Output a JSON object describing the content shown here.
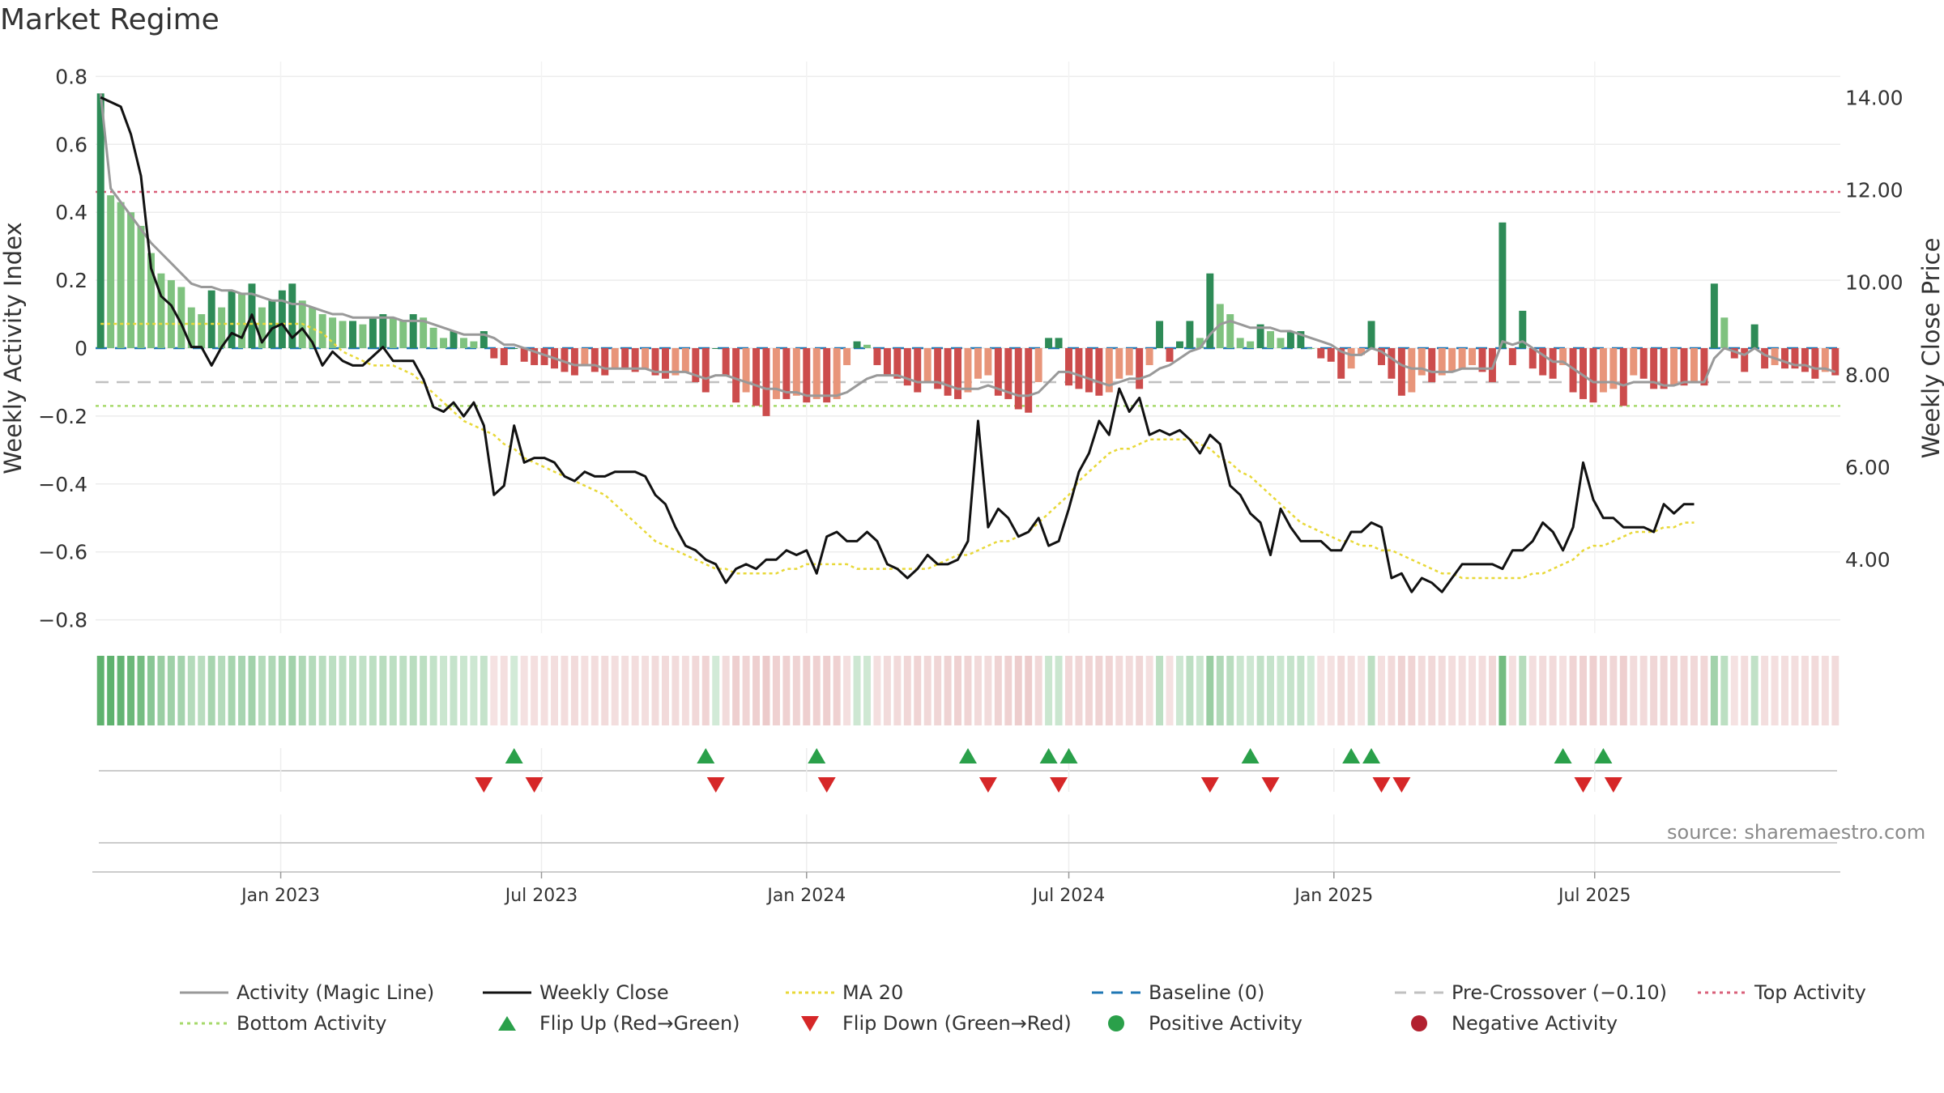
{
  "title": "Market Regime",
  "source_note": "source: sharemaestro.com",
  "colors": {
    "strong_green": "#2e8b57",
    "light_green": "#7fc27f",
    "strong_red": "#cc4c4c",
    "light_red": "#e8957a",
    "magic_line": "#999999",
    "weekly_close": "#111111",
    "ma20": "#e8d838",
    "baseline": "#1f77b4",
    "pre_crossover": "#c0c0c0",
    "top_activity": "#d9607a",
    "bottom_activity": "#a6d96a",
    "flip_up": "#2aa04a",
    "flip_down": "#d62728",
    "ribbon_green": "#5fb26e",
    "ribbon_red": "#e0a7a7"
  },
  "legend": [
    {
      "label": "Activity (Magic Line)",
      "icon": "solid-gray-line"
    },
    {
      "label": "Weekly Close",
      "icon": "solid-black-line"
    },
    {
      "label": "MA 20",
      "icon": "dotted-yellow-line"
    },
    {
      "label": "Baseline (0)",
      "icon": "dashed-blue-line"
    },
    {
      "label": "Pre-Crossover (−0.10)",
      "icon": "dashed-gray-line"
    },
    {
      "label": "Top Activity",
      "icon": "dotted-pink-line"
    },
    {
      "label": "Bottom Activity",
      "icon": "dotted-green-line"
    },
    {
      "label": "Flip Up (Red→Green)",
      "icon": "green-up-triangle"
    },
    {
      "label": "Flip Down (Green→Red)",
      "icon": "red-down-triangle"
    },
    {
      "label": "Positive Activity",
      "icon": "green-circle"
    },
    {
      "label": "Negative Activity",
      "icon": "red-circle"
    }
  ],
  "chart_data": {
    "type": "bar",
    "start_date": "2022-08-29",
    "frequency": "weekly",
    "y_left": {
      "label": "Weekly Activity Index",
      "lim": [
        -0.82,
        0.82
      ],
      "ticks": [
        0.8,
        0.6,
        0.4,
        0.2,
        0,
        -0.2,
        -0.4,
        -0.6,
        -0.8
      ],
      "tick_labels": [
        "0.8",
        "0.6",
        "0.4",
        "0.2",
        "0",
        "−0.2",
        "−0.4",
        "−0.6",
        "−0.8"
      ]
    },
    "y_right": {
      "label": "Weekly Close Price",
      "lim": [
        2.55,
        14.6
      ],
      "ticks": [
        14,
        12,
        10,
        8,
        6,
        4
      ],
      "tick_labels": [
        "14.00",
        "12.00",
        "10.00",
        "8.00",
        "6.00",
        "4.00"
      ]
    },
    "x_ticks": [
      {
        "label": "Jan 2023",
        "date": "2023-01-01"
      },
      {
        "label": "Jul 2023",
        "date": "2023-07-01"
      },
      {
        "label": "Jan 2024",
        "date": "2024-01-01"
      },
      {
        "label": "Jul 2024",
        "date": "2024-07-01"
      },
      {
        "label": "Jan 2025",
        "date": "2025-01-01"
      },
      {
        "label": "Jul 2025",
        "date": "2025-07-01"
      }
    ],
    "reference_lines": {
      "baseline": 0,
      "pre_crossover": -0.1,
      "top_activity": 0.46,
      "bottom_activity": -0.17
    },
    "activity": [
      0.75,
      0.45,
      0.43,
      0.4,
      0.36,
      0.28,
      0.22,
      0.2,
      0.18,
      0.12,
      0.1,
      0.17,
      0.12,
      0.17,
      0.16,
      0.19,
      0.12,
      0.14,
      0.17,
      0.19,
      0.14,
      0.12,
      0.1,
      0.09,
      0.08,
      0.08,
      0.07,
      0.09,
      0.1,
      0.09,
      0.08,
      0.1,
      0.09,
      0.06,
      0.03,
      0.05,
      0.03,
      0.02,
      0.05,
      -0.03,
      -0.05,
      0.0,
      -0.04,
      -0.05,
      -0.05,
      -0.06,
      -0.07,
      -0.08,
      -0.05,
      -0.07,
      -0.08,
      -0.06,
      -0.06,
      -0.07,
      -0.06,
      -0.08,
      -0.09,
      -0.08,
      -0.07,
      -0.1,
      -0.13,
      0.0,
      -0.08,
      -0.16,
      -0.13,
      -0.17,
      -0.2,
      -0.15,
      -0.15,
      -0.14,
      -0.16,
      -0.15,
      -0.16,
      -0.15,
      -0.05,
      0.02,
      0.01,
      -0.05,
      -0.08,
      -0.09,
      -0.11,
      -0.13,
      -0.1,
      -0.12,
      -0.14,
      -0.15,
      -0.13,
      -0.09,
      -0.08,
      -0.14,
      -0.15,
      -0.18,
      -0.19,
      -0.1,
      0.03,
      0.03,
      -0.11,
      -0.12,
      -0.13,
      -0.14,
      -0.13,
      -0.09,
      -0.08,
      -0.12,
      -0.05,
      0.08,
      -0.04,
      0.02,
      0.08,
      0.03,
      0.22,
      0.13,
      0.1,
      0.03,
      0.02,
      0.07,
      0.05,
      0.03,
      0.05,
      0.05,
      0.0,
      -0.03,
      -0.04,
      -0.09,
      -0.06,
      -0.02,
      0.08,
      -0.05,
      -0.09,
      -0.14,
      -0.13,
      -0.08,
      -0.1,
      -0.08,
      -0.07,
      -0.06,
      -0.05,
      -0.07,
      -0.1,
      0.37,
      -0.05,
      0.11,
      -0.06,
      -0.08,
      -0.09,
      -0.05,
      -0.13,
      -0.15,
      -0.16,
      -0.13,
      -0.12,
      -0.17,
      -0.08,
      -0.09,
      -0.12,
      -0.12,
      -0.11,
      -0.11,
      -0.1,
      -0.11,
      0.19,
      0.09,
      -0.03,
      -0.07,
      0.07,
      -0.06,
      -0.05,
      -0.06,
      -0.06,
      -0.07,
      -0.09,
      -0.07,
      -0.08
    ],
    "magic_line": [
      0.75,
      0.47,
      0.43,
      0.39,
      0.35,
      0.31,
      0.28,
      0.25,
      0.22,
      0.19,
      0.18,
      0.18,
      0.17,
      0.17,
      0.16,
      0.16,
      0.15,
      0.14,
      0.14,
      0.13,
      0.13,
      0.12,
      0.11,
      0.1,
      0.1,
      0.09,
      0.09,
      0.09,
      0.09,
      0.09,
      0.08,
      0.08,
      0.08,
      0.07,
      0.06,
      0.05,
      0.04,
      0.04,
      0.04,
      0.03,
      0.01,
      0.01,
      0.0,
      -0.01,
      -0.02,
      -0.03,
      -0.04,
      -0.05,
      -0.05,
      -0.05,
      -0.06,
      -0.06,
      -0.06,
      -0.06,
      -0.06,
      -0.07,
      -0.07,
      -0.07,
      -0.07,
      -0.08,
      -0.09,
      -0.08,
      -0.08,
      -0.09,
      -0.1,
      -0.11,
      -0.12,
      -0.12,
      -0.13,
      -0.13,
      -0.14,
      -0.14,
      -0.14,
      -0.14,
      -0.13,
      -0.11,
      -0.09,
      -0.08,
      -0.08,
      -0.08,
      -0.09,
      -0.1,
      -0.1,
      -0.1,
      -0.11,
      -0.12,
      -0.12,
      -0.12,
      -0.11,
      -0.12,
      -0.13,
      -0.14,
      -0.14,
      -0.13,
      -0.1,
      -0.07,
      -0.07,
      -0.08,
      -0.09,
      -0.1,
      -0.11,
      -0.1,
      -0.09,
      -0.09,
      -0.08,
      -0.06,
      -0.05,
      -0.03,
      -0.01,
      0.0,
      0.04,
      0.07,
      0.08,
      0.07,
      0.06,
      0.06,
      0.06,
      0.05,
      0.05,
      0.04,
      0.03,
      0.02,
      0.01,
      -0.01,
      -0.02,
      -0.02,
      0.0,
      -0.01,
      -0.03,
      -0.05,
      -0.06,
      -0.06,
      -0.07,
      -0.07,
      -0.07,
      -0.06,
      -0.06,
      -0.06,
      -0.06,
      0.02,
      0.01,
      0.02,
      0.0,
      -0.02,
      -0.04,
      -0.04,
      -0.06,
      -0.08,
      -0.1,
      -0.1,
      -0.1,
      -0.11,
      -0.1,
      -0.1,
      -0.1,
      -0.11,
      -0.11,
      -0.1,
      -0.1,
      -0.1,
      -0.03,
      0.0,
      -0.01,
      -0.02,
      0.0,
      -0.02,
      -0.03,
      -0.04,
      -0.05,
      -0.05,
      -0.06,
      -0.06,
      -0.07
    ],
    "weekly_close": [
      14.0,
      13.9,
      13.8,
      13.2,
      12.3,
      10.3,
      9.7,
      9.5,
      9.1,
      8.6,
      8.6,
      8.2,
      8.6,
      8.9,
      8.8,
      9.3,
      8.7,
      9.0,
      9.1,
      8.8,
      9.0,
      8.7,
      8.2,
      8.5,
      8.3,
      8.2,
      8.2,
      8.4,
      8.6,
      8.3,
      8.3,
      8.3,
      7.9,
      7.3,
      7.2,
      7.4,
      7.1,
      7.4,
      6.9,
      5.4,
      5.6,
      6.9,
      6.1,
      6.2,
      6.2,
      6.1,
      5.8,
      5.7,
      5.9,
      5.8,
      5.8,
      5.9,
      5.9,
      5.9,
      5.8,
      5.4,
      5.2,
      4.7,
      4.3,
      4.2,
      4.0,
      3.9,
      3.5,
      3.8,
      3.9,
      3.8,
      4.0,
      4.0,
      4.2,
      4.1,
      4.2,
      3.7,
      4.5,
      4.6,
      4.4,
      4.4,
      4.6,
      4.4,
      3.9,
      3.8,
      3.6,
      3.8,
      4.1,
      3.9,
      3.9,
      4.0,
      4.4,
      7.0,
      4.7,
      5.1,
      4.9,
      4.5,
      4.6,
      4.9,
      4.3,
      4.4,
      5.1,
      5.9,
      6.3,
      7.0,
      6.7,
      7.7,
      7.2,
      7.5,
      6.7,
      6.8,
      6.7,
      6.8,
      6.6,
      6.3,
      6.7,
      6.5,
      5.6,
      5.4,
      5.0,
      4.8,
      4.1,
      5.1,
      4.7,
      4.4,
      4.4,
      4.4,
      4.2,
      4.2,
      4.6,
      4.6,
      4.8,
      4.7,
      3.6,
      3.7,
      3.3,
      3.6,
      3.5,
      3.3,
      3.6,
      3.9,
      3.9,
      3.9,
      3.9,
      3.8,
      4.2,
      4.2,
      4.4,
      4.8,
      4.6,
      4.2,
      4.7,
      6.1,
      5.3,
      4.9,
      4.9,
      4.7,
      4.7,
      4.7,
      4.6,
      5.2,
      5.0,
      5.2,
      5.2
    ],
    "ma20": [
      9.1,
      9.1,
      9.1,
      9.1,
      9.1,
      9.1,
      9.1,
      9.1,
      9.1,
      9.1,
      9.1,
      9.1,
      9.1,
      9.1,
      9.1,
      9.1,
      9.1,
      9.1,
      9.1,
      9.1,
      9.1,
      9.0,
      8.9,
      8.7,
      8.5,
      8.4,
      8.3,
      8.2,
      8.2,
      8.2,
      8.1,
      8.0,
      7.8,
      7.6,
      7.4,
      7.2,
      7.0,
      6.9,
      6.8,
      6.7,
      6.5,
      6.4,
      6.2,
      6.1,
      6.0,
      5.9,
      5.8,
      5.7,
      5.6,
      5.5,
      5.4,
      5.2,
      5.0,
      4.8,
      4.6,
      4.4,
      4.3,
      4.2,
      4.1,
      4.0,
      3.9,
      3.8,
      3.8,
      3.7,
      3.7,
      3.7,
      3.7,
      3.7,
      3.8,
      3.8,
      3.9,
      3.9,
      3.9,
      3.9,
      3.9,
      3.8,
      3.8,
      3.8,
      3.8,
      3.8,
      3.8,
      3.8,
      3.8,
      3.9,
      4.0,
      4.1,
      4.1,
      4.2,
      4.3,
      4.4,
      4.4,
      4.5,
      4.6,
      4.8,
      5.0,
      5.2,
      5.4,
      5.7,
      5.9,
      6.1,
      6.3,
      6.4,
      6.4,
      6.5,
      6.6,
      6.6,
      6.6,
      6.6,
      6.6,
      6.5,
      6.4,
      6.2,
      6.1,
      5.9,
      5.8,
      5.6,
      5.4,
      5.2,
      5.0,
      4.8,
      4.7,
      4.6,
      4.5,
      4.4,
      4.4,
      4.3,
      4.3,
      4.2,
      4.2,
      4.1,
      4.0,
      3.9,
      3.8,
      3.7,
      3.7,
      3.6,
      3.6,
      3.6,
      3.6,
      3.6,
      3.6,
      3.6,
      3.7,
      3.7,
      3.8,
      3.9,
      4.0,
      4.2,
      4.3,
      4.3,
      4.4,
      4.5,
      4.6,
      4.6,
      4.6,
      4.7,
      4.7,
      4.8,
      4.8
    ],
    "flip_up_weeks": [
      41,
      60,
      71,
      86,
      94,
      96,
      114,
      124,
      126,
      145,
      149
    ],
    "flip_down_weeks": [
      38,
      43,
      61,
      72,
      88,
      95,
      110,
      116,
      127,
      129,
      147,
      150
    ]
  }
}
